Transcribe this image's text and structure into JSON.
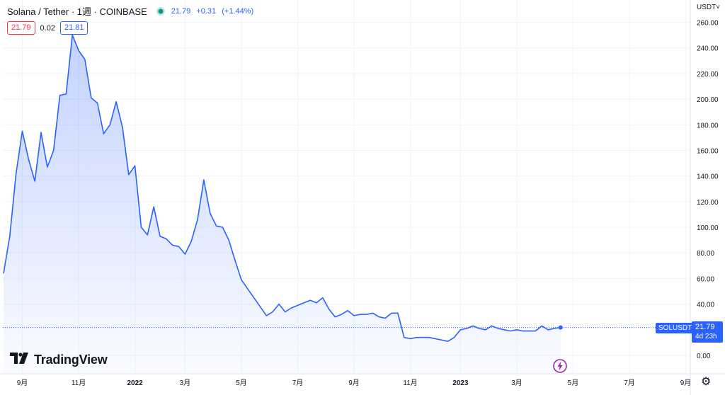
{
  "header": {
    "symbol": "Solana / Tether · 1週 · COINBASE",
    "last": "21.79",
    "change": "+0.31",
    "change_pct": "(+1.44%)",
    "status_icon": "market-open-dot-icon"
  },
  "order": {
    "bid": "21.79",
    "spread": "0.02",
    "ask": "21.81"
  },
  "axis": {
    "currency": "USDT",
    "currency_icon": "chevron-down-icon",
    "y_ticks": [
      "260.00",
      "240.00",
      "220.00",
      "200.00",
      "180.00",
      "160.00",
      "140.00",
      "120.00",
      "100.00",
      "80.00",
      "60.00",
      "40.00",
      "0.00"
    ],
    "y_values": [
      260,
      240,
      220,
      200,
      180,
      160,
      140,
      120,
      100,
      80,
      60,
      40,
      0
    ],
    "x_ticks": [
      "9月",
      "11月",
      "2022",
      "3月",
      "5月",
      "7月",
      "9月",
      "11月",
      "2023",
      "3月",
      "5月",
      "7月",
      "9月"
    ],
    "x_tick_weeks": [
      3,
      12,
      21,
      29,
      38,
      47,
      56,
      65,
      73,
      82,
      91,
      100,
      109
    ],
    "bold_x_ticks": [
      "2022",
      "2023"
    ]
  },
  "price_tag": {
    "symbol": "SOLUSDT",
    "price": "21.79",
    "countdown": "4d 23h"
  },
  "branding": {
    "logo_icon": "tradingview-logo-icon",
    "name": "TradingView"
  },
  "icons": {
    "settings": "gear-icon",
    "flash": "lightning-icon"
  },
  "colors": {
    "line": "#2962ff",
    "bid": "#f23645",
    "ask": "#2962ff",
    "status": "#089981",
    "grid": "#f0f3fa"
  },
  "chart_data": {
    "type": "area",
    "series": [
      {
        "name": "SOLUSDT",
        "x_week_index": [
          0,
          1,
          2,
          3,
          4,
          5,
          6,
          7,
          8,
          9,
          10,
          11,
          12,
          13,
          14,
          15,
          16,
          17,
          18,
          19,
          20,
          21,
          22,
          23,
          24,
          25,
          26,
          27,
          28,
          29,
          30,
          31,
          32,
          33,
          34,
          35,
          36,
          37,
          38,
          39,
          40,
          41,
          42,
          43,
          44,
          45,
          46,
          47,
          48,
          49,
          50,
          51,
          52,
          53,
          54,
          55,
          56,
          57,
          58,
          59,
          60,
          61,
          62,
          63,
          64,
          65,
          66,
          67,
          68,
          69,
          70,
          71,
          72,
          73,
          74,
          75,
          76,
          77,
          78,
          79,
          80,
          81,
          82,
          83,
          84,
          85,
          86,
          87,
          88,
          89
        ],
        "values": [
          64,
          93,
          142,
          175,
          153,
          136,
          174,
          147,
          160,
          203,
          204,
          250,
          238,
          231,
          201,
          197,
          173,
          180,
          198,
          178,
          141,
          148,
          100,
          94,
          116,
          93,
          91,
          86,
          85,
          79,
          89,
          106,
          137,
          111,
          101,
          100,
          90,
          74,
          59,
          52,
          45,
          38,
          31,
          34,
          40,
          34,
          37,
          39,
          41,
          43,
          41,
          45,
          36,
          30,
          32,
          35,
          31,
          32,
          32,
          33,
          30,
          29,
          33,
          33,
          14,
          13,
          14,
          14,
          14,
          13,
          12,
          11,
          14,
          20,
          21,
          23,
          21,
          20,
          23,
          21,
          20,
          19,
          20,
          19,
          19,
          19,
          23,
          20,
          21,
          21.79
        ]
      }
    ],
    "x_axis_labels": [
      "9月",
      "11月",
      "2022",
      "3月",
      "5月",
      "7月",
      "9月",
      "11月",
      "2023",
      "3月",
      "5月",
      "7月",
      "9月"
    ],
    "ylim": [
      -15,
      270
    ],
    "last_value": 21.79,
    "grid": true,
    "area_fill": true
  }
}
